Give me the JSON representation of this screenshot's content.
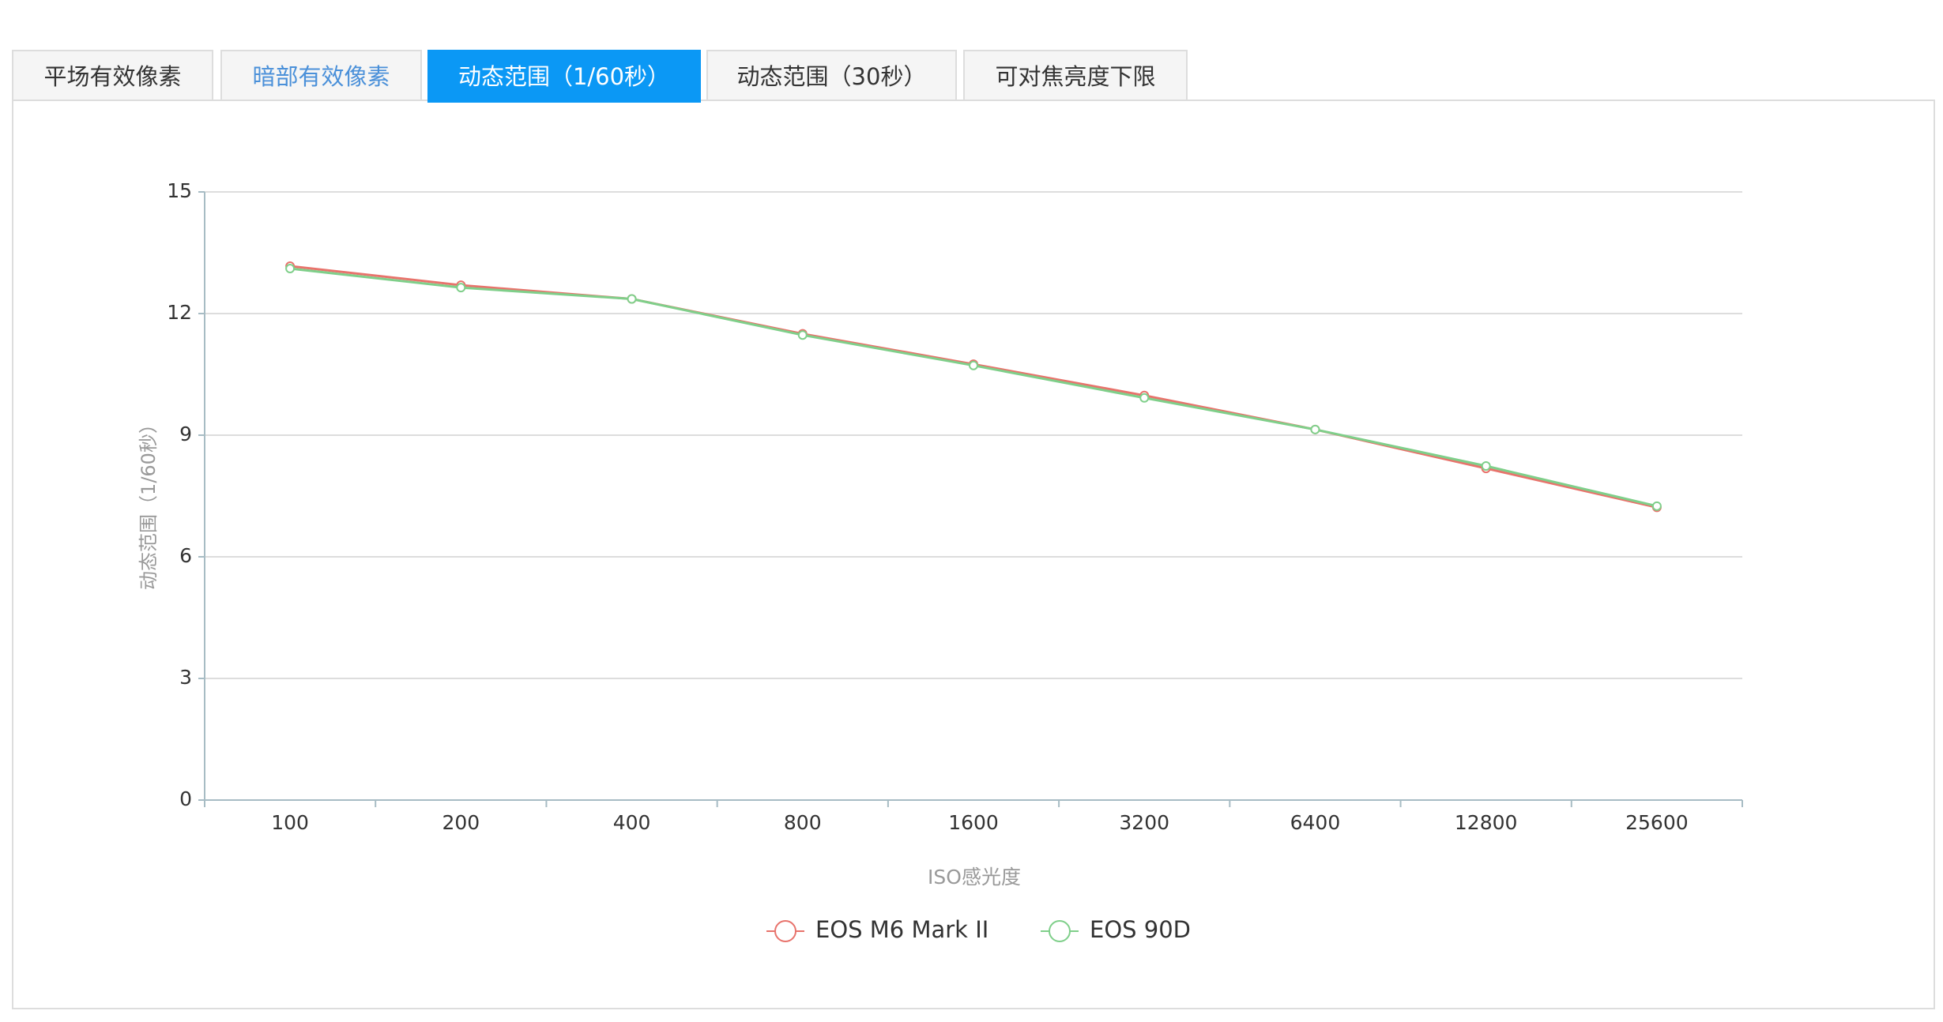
{
  "tabs": [
    "平场有效像素",
    "暗部有效像素",
    "动态范围（1/60秒）",
    "动态范围（30秒）",
    "可对焦亮度下限"
  ],
  "active_tab": 2,
  "chart_data": {
    "type": "line",
    "x_label": "ISO感光度",
    "y_label": "动态范围（1/60秒）",
    "categories": [
      "100",
      "200",
      "400",
      "800",
      "1600",
      "3200",
      "6400",
      "12800",
      "25600"
    ],
    "series": [
      {
        "name": "EOS M6 Mark II",
        "color": "#e8736c",
        "values": [
          13.17,
          12.7,
          12.36,
          11.5,
          10.75,
          9.98,
          9.14,
          8.18,
          7.22
        ]
      },
      {
        "name": "EOS 90D",
        "color": "#7fcf8a",
        "values": [
          13.11,
          12.64,
          12.36,
          11.47,
          10.72,
          9.92,
          9.14,
          8.24,
          7.25
        ]
      }
    ],
    "ylim": [
      0,
      15
    ],
    "yticks": [
      0,
      3,
      6,
      9,
      12,
      15
    ],
    "grid": true
  }
}
